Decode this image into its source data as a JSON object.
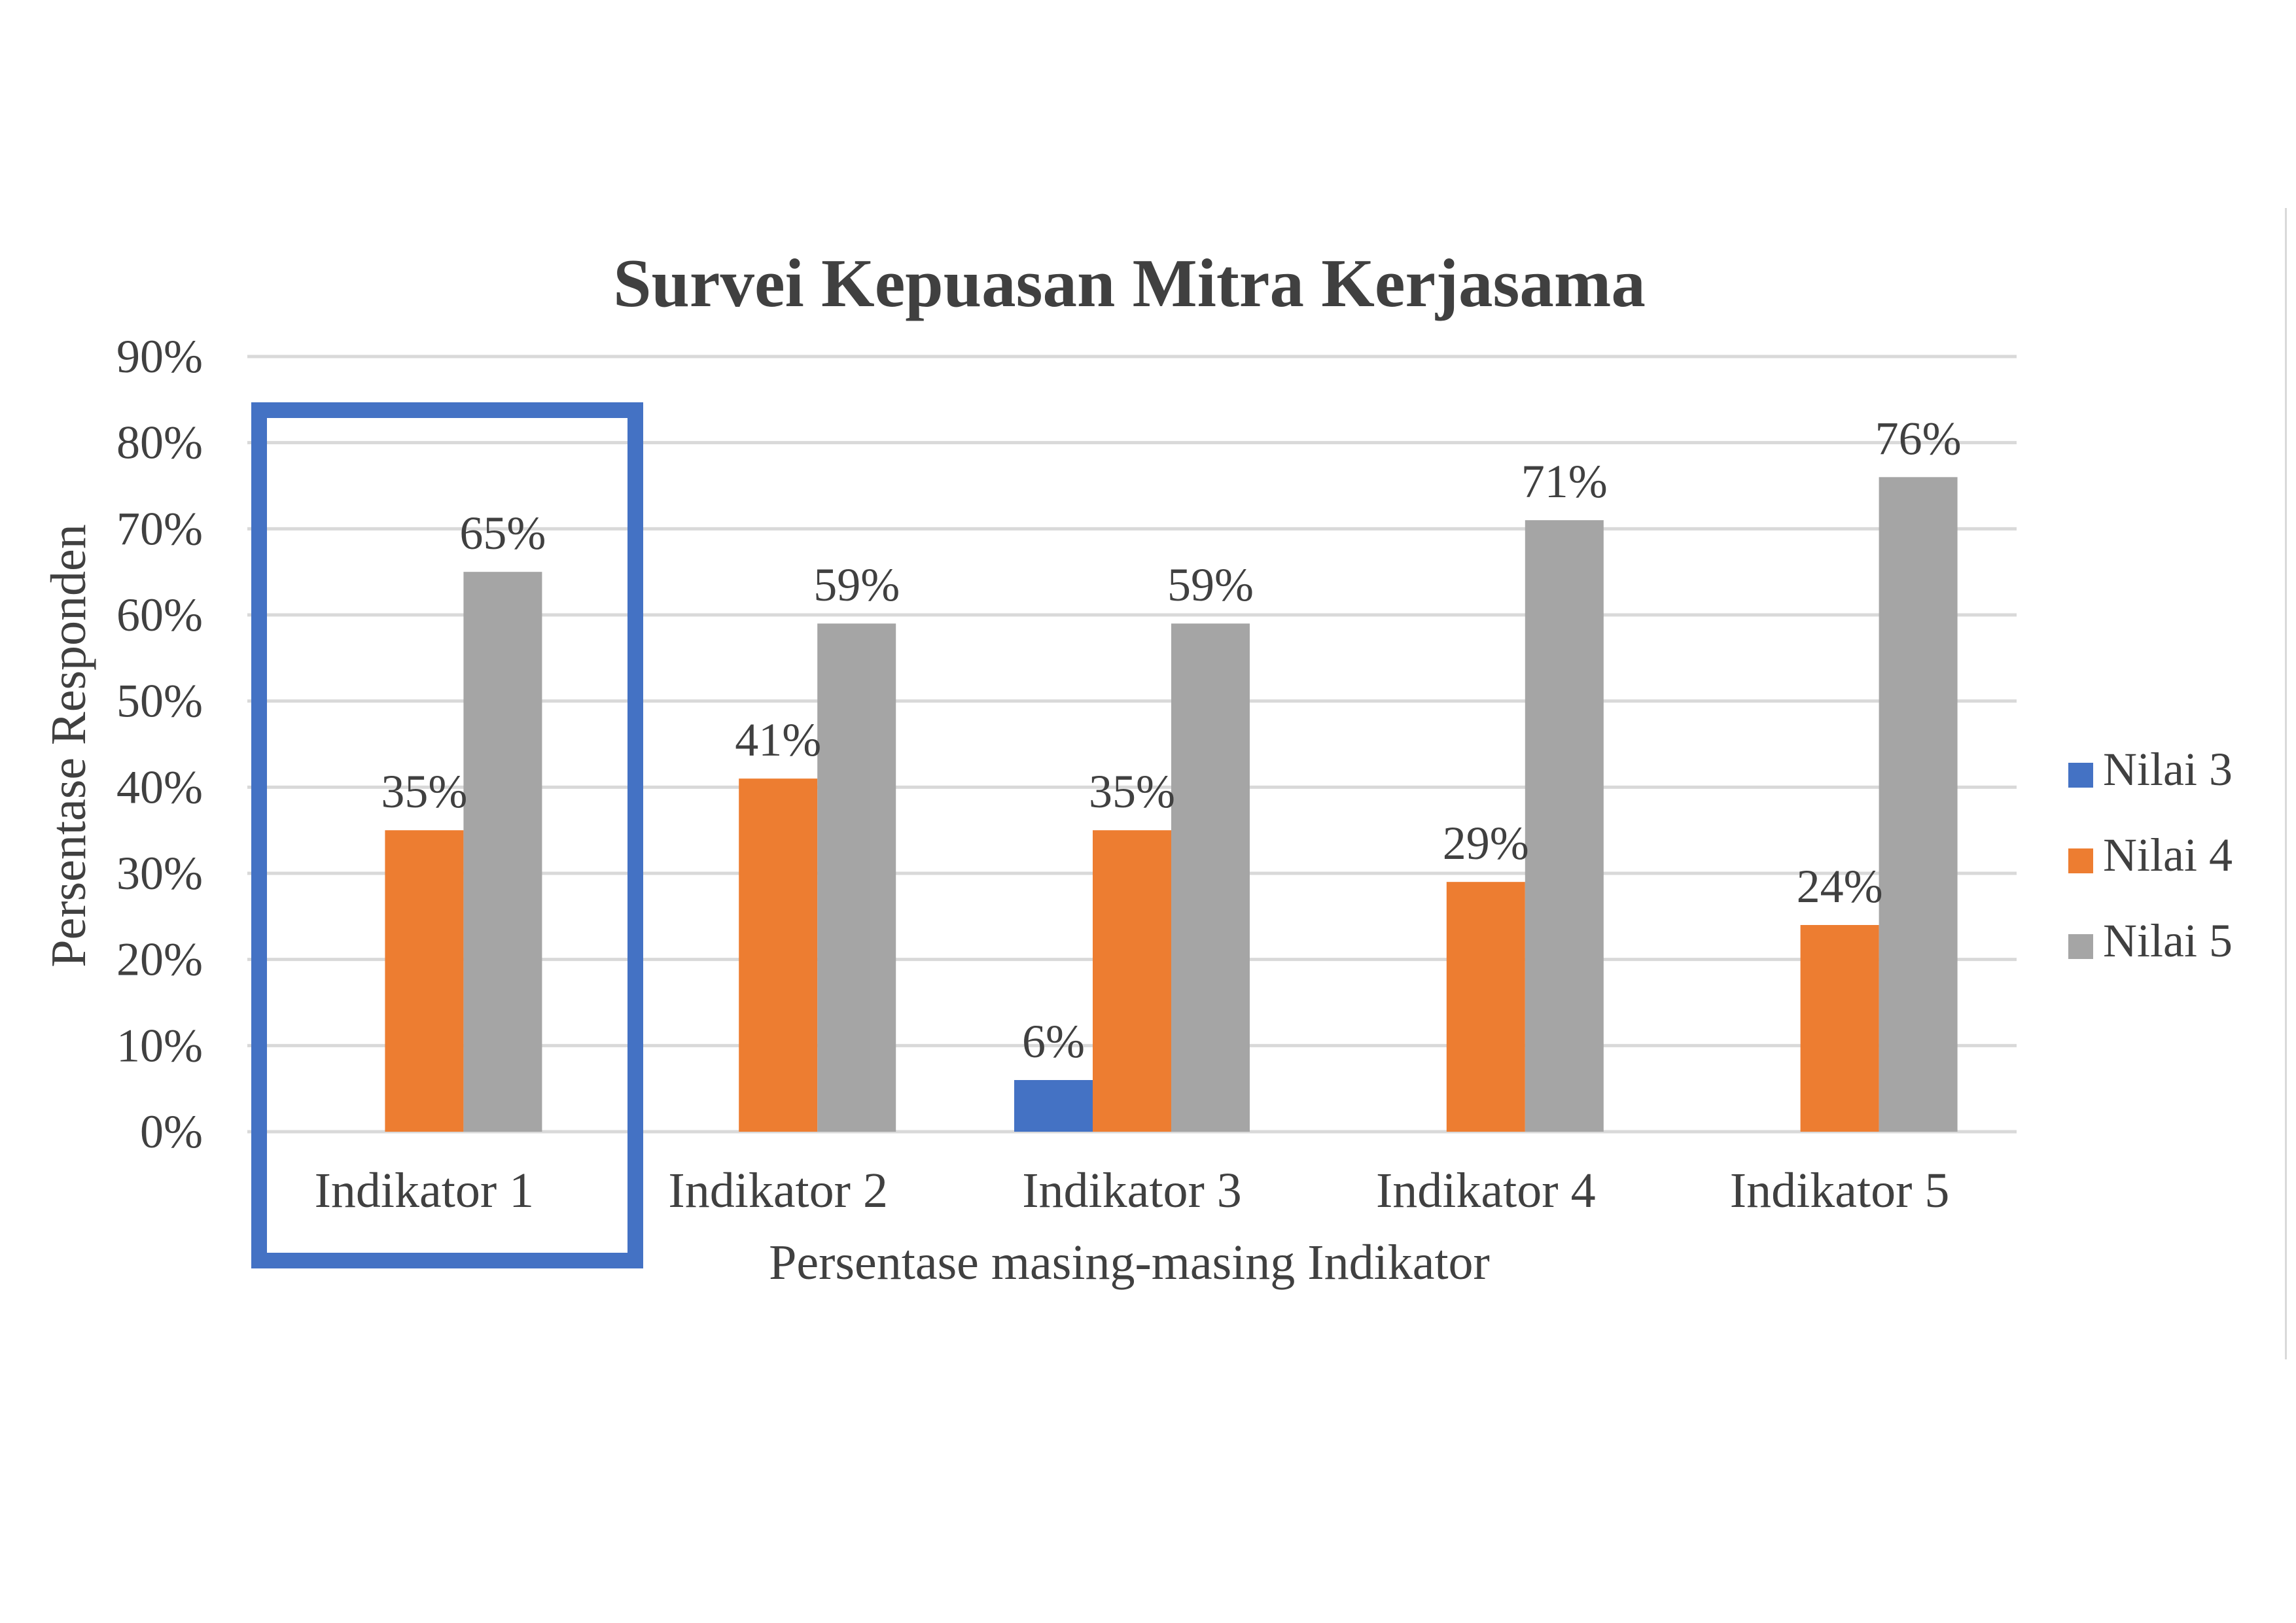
{
  "chart_data": {
    "type": "bar",
    "title": "Survei Kepuasan Mitra Kerjasama",
    "xlabel": "Persentase masing-masing Indikator",
    "ylabel": "Persentase Responden",
    "categories": [
      "Indikator 1",
      "Indikator 2",
      "Indikator 3",
      "Indikator 4",
      "Indikator 5"
    ],
    "series": [
      {
        "name": "Nilai 3",
        "color": "#4472c4",
        "values": [
          0,
          0,
          6,
          0,
          0
        ],
        "labels": [
          "",
          "",
          "6%",
          "",
          ""
        ]
      },
      {
        "name": "Nilai 4",
        "color": "#ed7d31",
        "values": [
          35,
          41,
          35,
          29,
          24
        ],
        "labels": [
          "35%",
          "41%",
          "35%",
          "29%",
          "24%"
        ]
      },
      {
        "name": "Nilai 5",
        "color": "#a5a5a5",
        "values": [
          65,
          59,
          59,
          71,
          76
        ],
        "labels": [
          "65%",
          "59%",
          "59%",
          "71%",
          "76%"
        ]
      }
    ],
    "ylim": [
      0,
      90
    ],
    "yticks": [
      0,
      10,
      20,
      30,
      40,
      50,
      60,
      70,
      80,
      90
    ],
    "ytick_labels": [
      "0%",
      "10%",
      "20%",
      "30%",
      "40%",
      "50%",
      "60%",
      "70%",
      "80%",
      "90%"
    ],
    "grid": true,
    "legend_position": "right",
    "highlight": {
      "category": "Indikator 1",
      "color": "#4472c4"
    }
  }
}
